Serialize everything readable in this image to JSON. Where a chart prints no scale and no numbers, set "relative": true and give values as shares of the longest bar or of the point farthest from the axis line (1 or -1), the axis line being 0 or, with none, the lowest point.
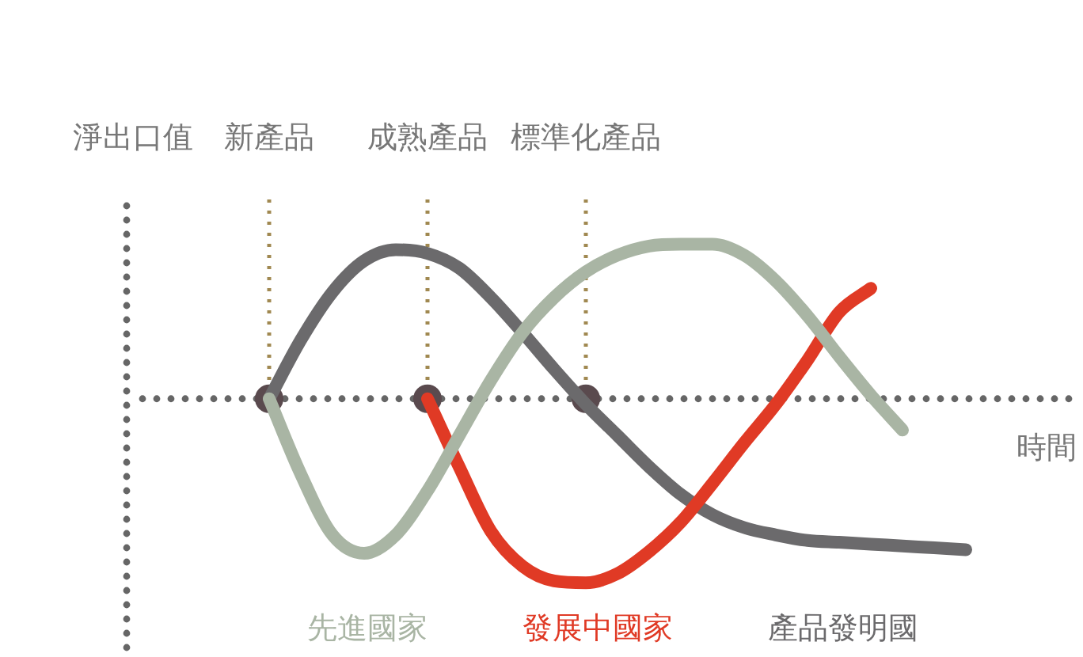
{
  "chart_data": {
    "type": "line",
    "relative": true,
    "ylabel": "淨出口值",
    "xlabel": "時間",
    "legend": "bottom",
    "line_style": "solid",
    "categories": [
      null,
      null,
      null,
      null,
      null,
      null,
      null,
      null,
      null,
      null,
      null,
      null,
      null,
      null,
      null,
      null,
      null,
      null,
      null,
      null,
      null,
      null,
      null,
      null,
      null,
      null,
      null,
      null,
      null,
      null
    ],
    "annotations": [
      "新產品",
      "成熟產品",
      "標準化產品"
    ],
    "series": [
      {
        "name": "先進國家",
        "color": "#a9b5a4",
        "values": [
          null,
          null,
          null,
          null,
          0,
          -0.41,
          -0.74,
          -0.84,
          -0.74,
          -0.5,
          -0.2,
          0.1,
          0.36,
          0.55,
          0.69,
          0.78,
          0.83,
          0.84,
          0.84,
          0.78,
          0.64,
          0.45,
          0.23,
          0.02,
          -0.17,
          null,
          null,
          null,
          null,
          null
        ]
      },
      {
        "name": "發展中國家",
        "color": "#e03a25",
        "values": [
          null,
          null,
          null,
          null,
          null,
          null,
          null,
          null,
          null,
          0,
          -0.37,
          -0.72,
          -0.91,
          -0.99,
          -1,
          -0.95,
          -0.83,
          -0.67,
          -0.46,
          -0.24,
          -0.03,
          0.21,
          0.47,
          0.6,
          null,
          null,
          null,
          null,
          null,
          null
        ]
      },
      {
        "name": "產品發明國",
        "color": "#6b6a6c",
        "values": [
          null,
          null,
          null,
          null,
          0,
          0.32,
          0.58,
          0.75,
          0.81,
          0.79,
          0.71,
          0.55,
          0.36,
          0.16,
          -0.03,
          -0.2,
          -0.37,
          -0.52,
          -0.63,
          -0.7,
          -0.74,
          -0.77,
          -0.78,
          -0.79,
          -0.8,
          -0.81,
          -0.82,
          null,
          null,
          null
        ]
      }
    ]
  }
}
